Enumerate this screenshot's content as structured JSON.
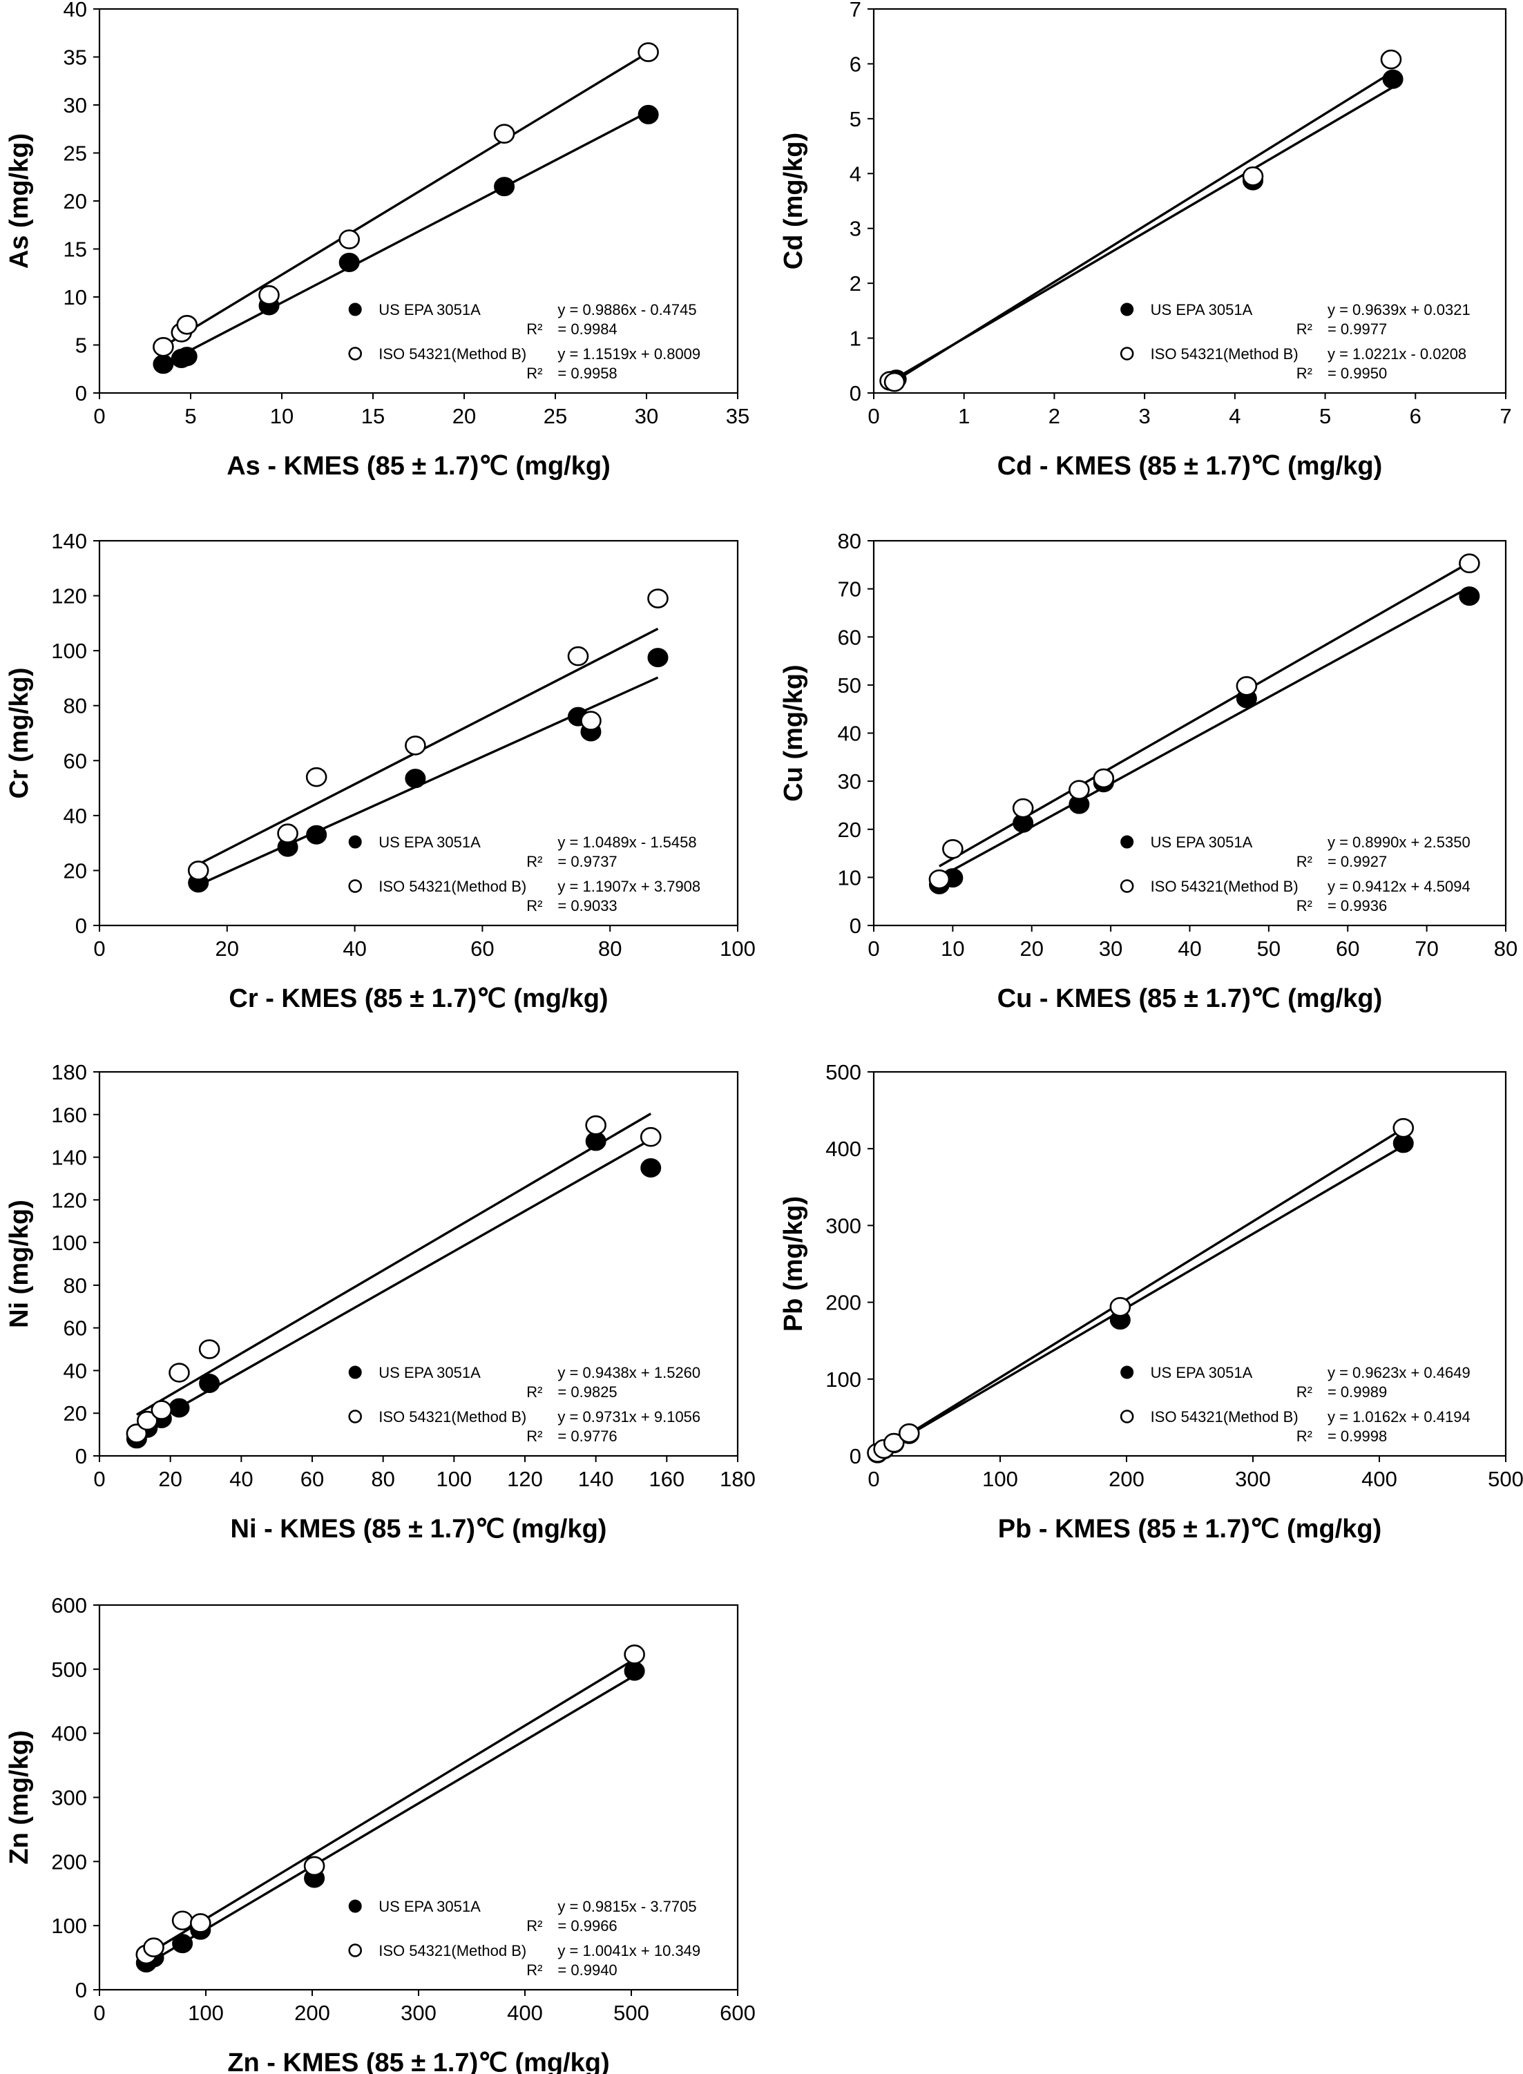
{
  "figure": {
    "x_axis_suffix": " - KMES (85 ±  1.7)℃ (mg/kg)",
    "y_axis_suffix": " (mg/kg)",
    "legend": {
      "series_a_label": "US EPA 3051A",
      "series_b_label": "ISO 54321(Method B)",
      "r2_label": "R²"
    }
  },
  "chart_data": [
    {
      "type": "scatter",
      "element": "As",
      "xlabel": "As - KMES (85 ±  1.7)℃ (mg/kg)",
      "ylabel": "As (mg/kg)",
      "xlim": [
        0,
        35
      ],
      "ylim": [
        0,
        40
      ],
      "xticks": [
        0,
        5,
        10,
        15,
        20,
        25,
        30,
        35
      ],
      "yticks": [
        0,
        5,
        10,
        15,
        20,
        25,
        30,
        35,
        40
      ],
      "grid": false,
      "legend_position": "bottom-right",
      "series": [
        {
          "name": "US EPA 3051A",
          "marker": "filled-circle",
          "equation": "y = 0.9886x - 0.4745",
          "r2": "= 0.9984",
          "slope": 0.9886,
          "intercept": -0.4745,
          "x": [
            3.5,
            4.5,
            4.8,
            9.3,
            13.7,
            22.2,
            30.1
          ],
          "y": [
            3.0,
            3.6,
            3.8,
            9.1,
            13.6,
            21.5,
            29.0
          ]
        },
        {
          "name": "ISO 54321(Method B)",
          "marker": "open-circle",
          "equation": "y = 1.1519x + 0.8009",
          "r2": "= 0.9958",
          "slope": 1.1519,
          "intercept": 0.8009,
          "x": [
            3.5,
            4.5,
            4.8,
            9.3,
            13.7,
            22.2,
            30.1
          ],
          "y": [
            4.8,
            6.3,
            7.1,
            10.2,
            16.0,
            27.0,
            35.5
          ]
        }
      ]
    },
    {
      "type": "scatter",
      "element": "Cd",
      "xlabel": "Cd - KMES (85 ±  1.7)℃ (mg/kg)",
      "ylabel": "Cd (mg/kg)",
      "xlim": [
        0,
        7
      ],
      "ylim": [
        0,
        7
      ],
      "xticks": [
        0,
        1,
        2,
        3,
        4,
        5,
        6,
        7
      ],
      "yticks": [
        0,
        1,
        2,
        3,
        4,
        5,
        6,
        7
      ],
      "grid": false,
      "legend_position": "bottom-right",
      "series": [
        {
          "name": "US EPA 3051A",
          "marker": "filled-circle",
          "equation": "y = 0.9639x + 0.0321",
          "r2": "= 0.9977",
          "slope": 0.9639,
          "intercept": 0.0321,
          "x": [
            0.2,
            0.25,
            4.2,
            5.75
          ],
          "y": [
            0.22,
            0.25,
            3.87,
            5.72
          ]
        },
        {
          "name": "ISO 54321(Method B)",
          "marker": "open-circle",
          "equation": "y = 1.0221x - 0.0208",
          "r2": "= 0.9950",
          "slope": 1.0221,
          "intercept": -0.0208,
          "x": [
            0.18,
            0.23,
            4.2,
            5.73
          ],
          "y": [
            0.22,
            0.2,
            3.95,
            6.08
          ]
        }
      ]
    },
    {
      "type": "scatter",
      "element": "Cr",
      "xlabel": "Cr - KMES (85 ±  1.7)℃ (mg/kg)",
      "ylabel": "Cr (mg/kg)",
      "xlim": [
        0,
        100
      ],
      "ylim": [
        0,
        140
      ],
      "xticks": [
        0,
        20,
        40,
        60,
        80,
        100
      ],
      "yticks": [
        0,
        20,
        40,
        60,
        80,
        100,
        120,
        140
      ],
      "grid": false,
      "legend_position": "bottom-right",
      "series": [
        {
          "name": "US EPA 3051A",
          "marker": "filled-circle",
          "equation": "y = 1.0489x - 1.5458",
          "r2": "= 0.9737",
          "slope": 1.0489,
          "intercept": -1.5458,
          "x": [
            15.5,
            29.5,
            34,
            49.5,
            75,
            77,
            87.5
          ],
          "y": [
            15.5,
            28.5,
            33,
            53.5,
            76,
            70.5,
            97.5
          ]
        },
        {
          "name": "ISO 54321(Method B)",
          "marker": "open-circle",
          "equation": "y = 1.1907x + 3.7908",
          "r2": "= 0.9033",
          "slope": 1.1907,
          "intercept": 3.7908,
          "x": [
            15.5,
            29.5,
            34,
            49.5,
            75,
            77,
            87.5
          ],
          "y": [
            20,
            33.5,
            54,
            65.5,
            98,
            74.5,
            119
          ]
        }
      ]
    },
    {
      "type": "scatter",
      "element": "Cu",
      "xlabel": "Cu - KMES (85 ±  1.7)℃ (mg/kg)",
      "ylabel": "Cu (mg/kg)",
      "xlim": [
        0,
        80
      ],
      "ylim": [
        0,
        80
      ],
      "xticks": [
        0,
        10,
        20,
        30,
        40,
        50,
        60,
        70,
        80
      ],
      "yticks": [
        0,
        10,
        20,
        30,
        40,
        50,
        60,
        70,
        80
      ],
      "grid": false,
      "legend_position": "bottom-right",
      "series": [
        {
          "name": "US EPA 3051A",
          "marker": "filled-circle",
          "equation": "y = 0.8990x + 2.5350",
          "r2": "= 0.9927",
          "slope": 0.899,
          "intercept": 2.535,
          "x": [
            8.3,
            10,
            18.9,
            26,
            29.1,
            47.2,
            75.4
          ],
          "y": [
            8.5,
            9.9,
            21.3,
            25.2,
            29.7,
            47.2,
            68.5
          ]
        },
        {
          "name": "ISO 54321(Method B)",
          "marker": "open-circle",
          "equation": "y = 0.9412x + 4.5094",
          "r2": "= 0.9936",
          "slope": 0.9412,
          "intercept": 4.5094,
          "x": [
            8.3,
            10,
            18.9,
            26,
            29.1,
            47.2,
            75.4
          ],
          "y": [
            9.6,
            15.9,
            24.4,
            28.2,
            30.6,
            49.8,
            75.3
          ]
        }
      ]
    },
    {
      "type": "scatter",
      "element": "Ni",
      "xlabel": "Ni - KMES (85 ±  1.7)℃ (mg/kg)",
      "ylabel": "Ni (mg/kg)",
      "xlim": [
        0,
        180
      ],
      "ylim": [
        0,
        180
      ],
      "xticks": [
        0,
        20,
        40,
        60,
        80,
        100,
        120,
        140,
        160,
        180
      ],
      "yticks": [
        0,
        20,
        40,
        60,
        80,
        100,
        120,
        140,
        160,
        180
      ],
      "grid": false,
      "legend_position": "bottom-right",
      "series": [
        {
          "name": "US EPA 3051A",
          "marker": "filled-circle",
          "equation": "y = 0.9438x + 1.5260",
          "r2": "= 0.9825",
          "slope": 0.9438,
          "intercept": 1.526,
          "x": [
            10.5,
            13.5,
            17.5,
            22.5,
            31,
            140,
            155.5
          ],
          "y": [
            8,
            13,
            17.5,
            22.5,
            34,
            147.5,
            135
          ]
        },
        {
          "name": "ISO 54321(Method B)",
          "marker": "open-circle",
          "equation": "y = 0.9731x + 9.1056",
          "r2": "= 0.9776",
          "slope": 0.9731,
          "intercept": 9.1056,
          "x": [
            10.5,
            13.5,
            17.5,
            22.5,
            31,
            140,
            155.5
          ],
          "y": [
            10.5,
            16.5,
            21.5,
            39,
            50,
            155,
            149.5
          ]
        }
      ]
    },
    {
      "type": "scatter",
      "element": "Pb",
      "xlabel": "Pb - KMES (85 ±  1.7)℃ (mg/kg)",
      "ylabel": "Pb (mg/kg)",
      "xlim": [
        0,
        500
      ],
      "ylim": [
        0,
        500
      ],
      "xticks": [
        0,
        100,
        200,
        300,
        400,
        500
      ],
      "yticks": [
        0,
        100,
        200,
        300,
        400,
        500
      ],
      "grid": false,
      "legend_position": "bottom-right",
      "series": [
        {
          "name": "US EPA 3051A",
          "marker": "filled-circle",
          "equation": "y = 0.9623x + 0.4649",
          "r2": "= 0.9989",
          "slope": 0.9623,
          "intercept": 0.4649,
          "x": [
            3,
            8,
            16,
            28,
            195,
            419
          ],
          "y": [
            3,
            8,
            16,
            28,
            177,
            407
          ]
        },
        {
          "name": "ISO 54321(Method B)",
          "marker": "open-circle",
          "equation": "y = 1.0162x + 0.4194",
          "r2": "= 0.9998",
          "slope": 1.0162,
          "intercept": 0.4194,
          "x": [
            3,
            8,
            16,
            28,
            195,
            419
          ],
          "y": [
            4,
            9,
            17,
            29.5,
            194,
            427
          ]
        }
      ]
    },
    {
      "type": "scatter",
      "element": "Zn",
      "xlabel": "Zn - KMES (85 ±  1.7)℃ (mg/kg)",
      "ylabel": "Zn (mg/kg)",
      "xlim": [
        0,
        600
      ],
      "ylim": [
        0,
        600
      ],
      "xticks": [
        0,
        100,
        200,
        300,
        400,
        500,
        600
      ],
      "yticks": [
        0,
        100,
        200,
        300,
        400,
        500,
        600
      ],
      "grid": false,
      "legend_position": "bottom-right",
      "series": [
        {
          "name": "US EPA 3051A",
          "marker": "filled-circle",
          "equation": "y = 0.9815x - 3.7705",
          "r2": "= 0.9966",
          "slope": 0.9815,
          "intercept": -3.7705,
          "x": [
            44,
            51,
            78,
            95,
            202,
            503
          ],
          "y": [
            42,
            50,
            72,
            93,
            174,
            497
          ]
        },
        {
          "name": "ISO 54321(Method B)",
          "marker": "open-circle",
          "equation": "y = 1.0041x + 10.349",
          "r2": "= 0.9940",
          "slope": 1.0041,
          "intercept": 10.349,
          "x": [
            44,
            51,
            78,
            95,
            202,
            503
          ],
          "y": [
            55,
            66,
            108,
            104,
            193,
            523
          ]
        }
      ]
    }
  ]
}
